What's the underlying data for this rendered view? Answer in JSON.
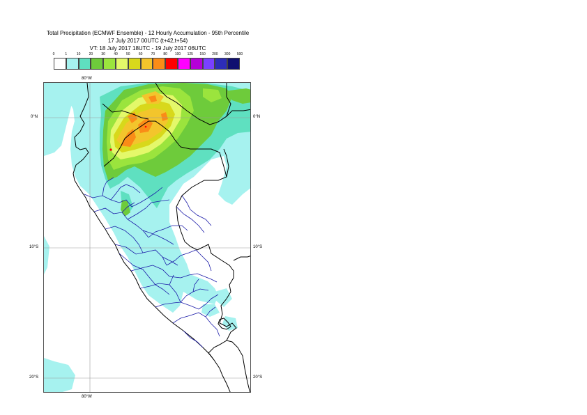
{
  "title": {
    "line1": "Total Precipitation (ECMWF Ensemble) - 12 Hourly Accumulation - 95th Percentile",
    "line2": "17 July 2017 00UTC (t+42,t+54)",
    "line3": "VT: 18 July 2017 18UTC - 19 July 2017 06UTC"
  },
  "legend": {
    "labels": [
      "0",
      "1",
      "10",
      "20",
      "30",
      "40",
      "50",
      "60",
      "70",
      "80",
      "100",
      "125",
      "150",
      "200",
      "300",
      "500"
    ],
    "colors": [
      "#ffffff",
      "#a6f2ef",
      "#5fe0c0",
      "#6ecb3b",
      "#9be43d",
      "#e4f86a",
      "#d8d81b",
      "#f3c52c",
      "#fa8c17",
      "#ff0000",
      "#ff00ff",
      "#b400d8",
      "#7a40ff",
      "#2d2db8",
      "#101070"
    ]
  },
  "grid": {
    "lon_top": "80°W",
    "lon_bottom": "80°W",
    "lat_left": [
      "0°N",
      "10°S",
      "20°S"
    ],
    "lat_right": [
      "0°N",
      "10°S",
      "20°S"
    ]
  }
}
